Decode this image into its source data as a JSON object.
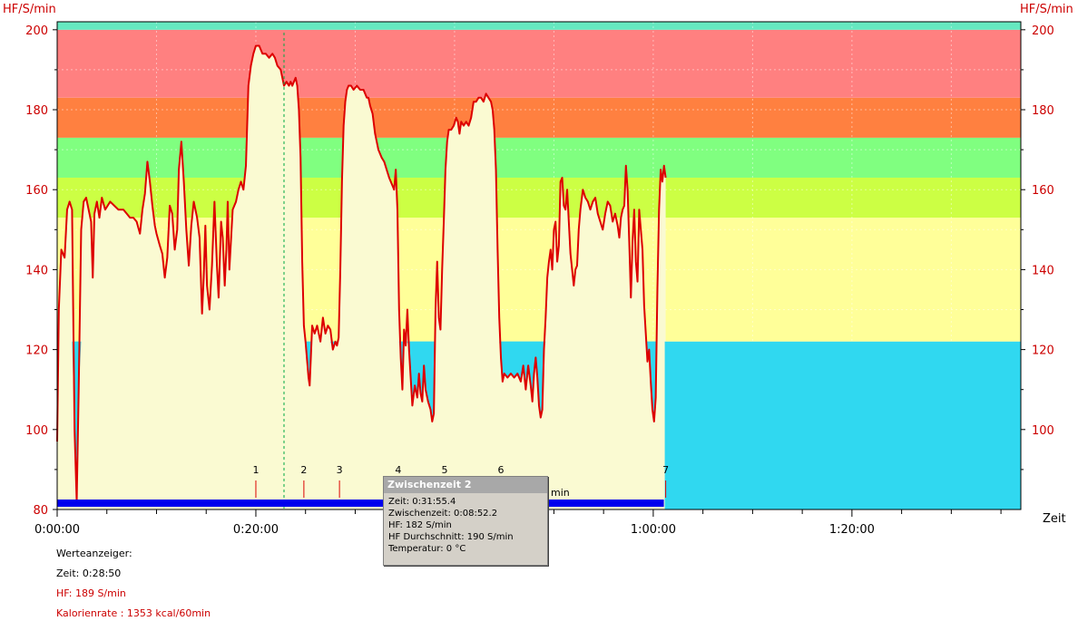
{
  "chart_data": {
    "type": "line",
    "y_axis_label": "HF/S/min",
    "x_axis_label": "Zeit",
    "ylim": [
      80,
      202
    ],
    "xlim_seconds": [
      0,
      5820
    ],
    "y_ticks": [
      80,
      100,
      120,
      140,
      160,
      180,
      200
    ],
    "y_ticks_right": [
      100,
      120,
      140,
      160,
      180,
      200
    ],
    "x_ticks": [
      {
        "t": 0,
        "label": "0:00:00"
      },
      {
        "t": 1200,
        "label": "0:20:00"
      },
      {
        "t": 3600,
        "label": "1:00:00"
      },
      {
        "t": 4800,
        "label": "1:20:00"
      }
    ],
    "zones": [
      {
        "from": 80,
        "to": 122,
        "color": "#fafad2"
      },
      {
        "from": 122,
        "to": 153,
        "color": "#ffff99"
      },
      {
        "from": 153,
        "to": 163,
        "color": "#ccff44"
      },
      {
        "from": 163,
        "to": 173,
        "color": "#80ff80"
      },
      {
        "from": 173,
        "to": 183,
        "color": "#ff8040"
      },
      {
        "from": 183,
        "to": 200,
        "color": "#ff8080"
      },
      {
        "from": 200,
        "to": 202,
        "color": "#66e8c0"
      }
    ],
    "below_zone_color": "#30d8f0",
    "below_zone_threshold": 122,
    "series": [
      {
        "color": "#dd0000",
        "points": [
          [
            0,
            97
          ],
          [
            10,
            130
          ],
          [
            25,
            145
          ],
          [
            45,
            143
          ],
          [
            60,
            155
          ],
          [
            75,
            157
          ],
          [
            90,
            155
          ],
          [
            105,
            100
          ],
          [
            118,
            82
          ],
          [
            130,
            110
          ],
          [
            145,
            150
          ],
          [
            160,
            157
          ],
          [
            175,
            158
          ],
          [
            190,
            155
          ],
          [
            205,
            152
          ],
          [
            215,
            138
          ],
          [
            225,
            154
          ],
          [
            240,
            157
          ],
          [
            255,
            153
          ],
          [
            270,
            158
          ],
          [
            290,
            155
          ],
          [
            320,
            157
          ],
          [
            345,
            156
          ],
          [
            370,
            155
          ],
          [
            400,
            155
          ],
          [
            420,
            154
          ],
          [
            440,
            153
          ],
          [
            460,
            153
          ],
          [
            480,
            152
          ],
          [
            500,
            149
          ],
          [
            515,
            155
          ],
          [
            530,
            159
          ],
          [
            545,
            167
          ],
          [
            560,
            162
          ],
          [
            575,
            156
          ],
          [
            590,
            151
          ],
          [
            600,
            149
          ],
          [
            620,
            146
          ],
          [
            635,
            144
          ],
          [
            650,
            138
          ],
          [
            665,
            143
          ],
          [
            680,
            156
          ],
          [
            695,
            154
          ],
          [
            710,
            145
          ],
          [
            725,
            150
          ],
          [
            735,
            165
          ],
          [
            750,
            172
          ],
          [
            765,
            162
          ],
          [
            780,
            150
          ],
          [
            795,
            141
          ],
          [
            810,
            151
          ],
          [
            825,
            157
          ],
          [
            845,
            153
          ],
          [
            860,
            148
          ],
          [
            875,
            129
          ],
          [
            885,
            138
          ],
          [
            895,
            151
          ],
          [
            905,
            136
          ],
          [
            920,
            130
          ],
          [
            935,
            141
          ],
          [
            950,
            157
          ],
          [
            965,
            141
          ],
          [
            975,
            133
          ],
          [
            990,
            152
          ],
          [
            1000,
            148
          ],
          [
            1012,
            136
          ],
          [
            1022,
            145
          ],
          [
            1030,
            157
          ],
          [
            1040,
            140
          ],
          [
            1060,
            155
          ],
          [
            1080,
            157
          ],
          [
            1095,
            160
          ],
          [
            1110,
            162
          ],
          [
            1125,
            160
          ],
          [
            1140,
            166
          ],
          [
            1155,
            186
          ],
          [
            1170,
            191
          ],
          [
            1185,
            194
          ],
          [
            1200,
            196
          ],
          [
            1220,
            196
          ],
          [
            1240,
            194
          ],
          [
            1260,
            194
          ],
          [
            1280,
            193
          ],
          [
            1300,
            194
          ],
          [
            1315,
            193
          ],
          [
            1330,
            191
          ],
          [
            1350,
            190
          ],
          [
            1370,
            186
          ],
          [
            1385,
            187
          ],
          [
            1400,
            186
          ],
          [
            1410,
            187
          ],
          [
            1420,
            186
          ],
          [
            1430,
            187
          ],
          [
            1440,
            188
          ],
          [
            1450,
            186
          ],
          [
            1460,
            180
          ],
          [
            1470,
            168
          ],
          [
            1480,
            142
          ],
          [
            1490,
            126
          ],
          [
            1500,
            122
          ],
          [
            1510,
            117
          ],
          [
            1518,
            113
          ],
          [
            1525,
            111
          ],
          [
            1540,
            126
          ],
          [
            1555,
            124
          ],
          [
            1570,
            126
          ],
          [
            1590,
            122
          ],
          [
            1605,
            128
          ],
          [
            1620,
            124
          ],
          [
            1635,
            126
          ],
          [
            1650,
            125
          ],
          [
            1665,
            120
          ],
          [
            1680,
            122
          ],
          [
            1690,
            121
          ],
          [
            1700,
            123
          ],
          [
            1710,
            140
          ],
          [
            1720,
            162
          ],
          [
            1730,
            176
          ],
          [
            1740,
            182
          ],
          [
            1750,
            185
          ],
          [
            1760,
            186
          ],
          [
            1775,
            186
          ],
          [
            1790,
            185
          ],
          [
            1810,
            186
          ],
          [
            1830,
            185
          ],
          [
            1850,
            185
          ],
          [
            1870,
            183
          ],
          [
            1880,
            183
          ],
          [
            1890,
            181
          ],
          [
            1905,
            179
          ],
          [
            1920,
            174
          ],
          [
            1940,
            170
          ],
          [
            1960,
            168
          ],
          [
            1975,
            167
          ],
          [
            1990,
            165
          ],
          [
            2005,
            163
          ],
          [
            2015,
            162
          ],
          [
            2025,
            161
          ],
          [
            2035,
            160
          ],
          [
            2045,
            165
          ],
          [
            2055,
            155
          ],
          [
            2065,
            130
          ],
          [
            2075,
            118
          ],
          [
            2085,
            110
          ],
          [
            2095,
            125
          ],
          [
            2105,
            121
          ],
          [
            2115,
            130
          ],
          [
            2125,
            120
          ],
          [
            2135,
            113
          ],
          [
            2145,
            106
          ],
          [
            2160,
            111
          ],
          [
            2175,
            108
          ],
          [
            2185,
            114
          ],
          [
            2195,
            109
          ],
          [
            2205,
            107
          ],
          [
            2215,
            116
          ],
          [
            2225,
            110
          ],
          [
            2240,
            107
          ],
          [
            2255,
            105
          ],
          [
            2265,
            102
          ],
          [
            2275,
            104
          ],
          [
            2285,
            130
          ],
          [
            2295,
            142
          ],
          [
            2305,
            128
          ],
          [
            2315,
            125
          ],
          [
            2325,
            140
          ],
          [
            2335,
            152
          ],
          [
            2345,
            165
          ],
          [
            2355,
            172
          ],
          [
            2365,
            175
          ],
          [
            2380,
            175
          ],
          [
            2395,
            176
          ],
          [
            2410,
            178
          ],
          [
            2420,
            177
          ],
          [
            2430,
            174
          ],
          [
            2440,
            177
          ],
          [
            2455,
            176
          ],
          [
            2470,
            177
          ],
          [
            2485,
            176
          ],
          [
            2500,
            178
          ],
          [
            2515,
            182
          ],
          [
            2530,
            182
          ],
          [
            2545,
            183
          ],
          [
            2560,
            183
          ],
          [
            2575,
            182
          ],
          [
            2590,
            184
          ],
          [
            2605,
            183
          ],
          [
            2620,
            182
          ],
          [
            2630,
            180
          ],
          [
            2640,
            175
          ],
          [
            2650,
            165
          ],
          [
            2660,
            145
          ],
          [
            2670,
            128
          ],
          [
            2680,
            118
          ],
          [
            2690,
            112
          ],
          [
            2700,
            114
          ],
          [
            2720,
            113
          ],
          [
            2740,
            114
          ],
          [
            2760,
            113
          ],
          [
            2780,
            114
          ],
          [
            2800,
            112
          ],
          [
            2815,
            116
          ],
          [
            2830,
            110
          ],
          [
            2845,
            116
          ],
          [
            2860,
            111
          ],
          [
            2870,
            107
          ],
          [
            2880,
            114
          ],
          [
            2890,
            118
          ],
          [
            2900,
            113
          ],
          [
            2910,
            106
          ],
          [
            2920,
            103
          ],
          [
            2930,
            105
          ],
          [
            2940,
            120
          ],
          [
            2950,
            128
          ],
          [
            2960,
            138
          ],
          [
            2970,
            142
          ],
          [
            2980,
            145
          ],
          [
            2990,
            140
          ],
          [
            3000,
            150
          ],
          [
            3010,
            152
          ],
          [
            3020,
            142
          ],
          [
            3030,
            146
          ],
          [
            3040,
            162
          ],
          [
            3050,
            163
          ],
          [
            3060,
            156
          ],
          [
            3070,
            155
          ],
          [
            3080,
            160
          ],
          [
            3090,
            152
          ],
          [
            3100,
            144
          ],
          [
            3110,
            140
          ],
          [
            3120,
            136
          ],
          [
            3130,
            140
          ],
          [
            3140,
            141
          ],
          [
            3150,
            150
          ],
          [
            3160,
            155
          ],
          [
            3175,
            160
          ],
          [
            3190,
            158
          ],
          [
            3205,
            157
          ],
          [
            3220,
            155
          ],
          [
            3235,
            157
          ],
          [
            3250,
            158
          ],
          [
            3265,
            154
          ],
          [
            3280,
            152
          ],
          [
            3295,
            150
          ],
          [
            3310,
            154
          ],
          [
            3325,
            157
          ],
          [
            3340,
            156
          ],
          [
            3355,
            152
          ],
          [
            3370,
            154
          ],
          [
            3385,
            151
          ],
          [
            3395,
            148
          ],
          [
            3405,
            153
          ],
          [
            3415,
            155
          ],
          [
            3425,
            156
          ],
          [
            3435,
            166
          ],
          [
            3445,
            160
          ],
          [
            3455,
            147
          ],
          [
            3465,
            133
          ],
          [
            3475,
            147
          ],
          [
            3485,
            155
          ],
          [
            3495,
            142
          ],
          [
            3505,
            137
          ],
          [
            3515,
            155
          ],
          [
            3525,
            150
          ],
          [
            3535,
            145
          ],
          [
            3545,
            131
          ],
          [
            3555,
            124
          ],
          [
            3565,
            117
          ],
          [
            3575,
            120
          ],
          [
            3585,
            112
          ],
          [
            3595,
            105
          ],
          [
            3605,
            102
          ],
          [
            3615,
            108
          ],
          [
            3625,
            135
          ],
          [
            3635,
            155
          ],
          [
            3645,
            165
          ],
          [
            3655,
            162
          ],
          [
            3665,
            166
          ],
          [
            3675,
            163
          ]
        ]
      }
    ],
    "laps": [
      {
        "label": "1",
        "t": 1200
      },
      {
        "label": "2",
        "t": 1490
      },
      {
        "label": "3",
        "t": 1705
      },
      {
        "label": "4",
        "t": 2060
      },
      {
        "label": "5",
        "t": 2340
      },
      {
        "label": "6",
        "t": 2680
      },
      {
        "label": "7",
        "t": 3675
      }
    ],
    "cursor_t": 1370,
    "bottom_bar_color": "#0000ee",
    "line_color": "#dd0000",
    "zone_boundary_label_partial": "min"
  },
  "info_panel": {
    "title": "Werteanzeiger:",
    "zeit": "Zeit: 0:28:50",
    "hf": "HF: 189 S/min",
    "kalorien": "Kalorienrate : 1353 kcal/60min"
  },
  "popup": {
    "title": "Zwischenzeit 2",
    "zeit": "Zeit: 0:31:55.4",
    "zwischenzeit": "Zwischenzeit: 0:08:52.2",
    "hf": "HF: 182 S/min",
    "hf_avg": "HF Durchschnitt:  190 S/min",
    "temp": "Temperatur: 0 °C"
  }
}
